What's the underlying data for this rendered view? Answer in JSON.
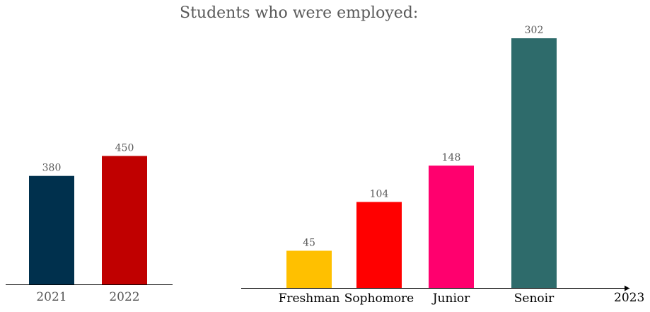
{
  "title": "Students who were employed:",
  "chart_data": [
    {
      "type": "bar",
      "categories": [
        "2021",
        "2022"
      ],
      "values": [
        380,
        450
      ],
      "colors": [
        "#00304d",
        "#c00000"
      ],
      "label_color": "#595959",
      "xlabel": "",
      "ylabel": "",
      "ylim": [
        0,
        860
      ],
      "grid": false
    },
    {
      "type": "bar",
      "categories": [
        "Freshman",
        "Sophomore",
        "Junior",
        "Senoir"
      ],
      "values": [
        45,
        104,
        148,
        302
      ],
      "colors": [
        "#ffc000",
        "#ff0000",
        "#ff006e",
        "#2e6b6b"
      ],
      "label_color": "#000000",
      "axis_end_label": "2023",
      "xlabel": "",
      "ylabel": "",
      "ylim": [
        0,
        350
      ],
      "grid": false
    }
  ]
}
